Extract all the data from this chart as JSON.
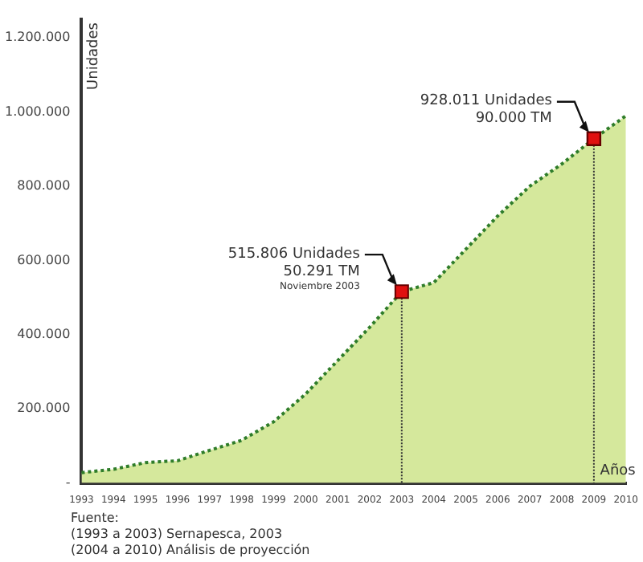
{
  "chart_data": {
    "type": "area",
    "ylabel": "Unidades",
    "xlabel": "Años",
    "categories": [
      "1993",
      "1994",
      "1995",
      "1996",
      "1997",
      "1998",
      "1999",
      "2000",
      "2001",
      "2002",
      "2003",
      "2004",
      "2005",
      "2006",
      "2007",
      "2008",
      "2009",
      "2010"
    ],
    "series": [
      {
        "color": "#2f7d2a",
        "values": [
          28000,
          37000,
          55000,
          60000,
          88000,
          115000,
          165000,
          240000,
          330000,
          420000,
          516000,
          540000,
          630000,
          720000,
          800000,
          860000,
          928000,
          990000
        ]
      }
    ],
    "ref_lines": [
      {
        "axis": "x",
        "value": "2003",
        "color": "#333333",
        "line_style": "dotted"
      },
      {
        "axis": "x",
        "value": "2009",
        "color": "#333333",
        "line_style": "dotted"
      }
    ],
    "ylim": [
      0,
      1250000
    ],
    "yticks": [
      {
        "value": 0,
        "label": "-"
      },
      {
        "value": 200000,
        "label": "200.000"
      },
      {
        "value": 400000,
        "label": "400.000"
      },
      {
        "value": 600000,
        "label": "600.000"
      },
      {
        "value": 800000,
        "label": "800.000"
      },
      {
        "value": 1000000,
        "label": "1.000.000"
      },
      {
        "value": 1200000,
        "label": "1.200.000"
      }
    ],
    "grid": false,
    "legend": false,
    "line_style": "dotted",
    "marker": "none",
    "annotations": [
      {
        "text": "515.806 Unidades\n50.291 TM\nNoviembre 2003",
        "x": "2003",
        "y": 516000
      },
      {
        "text": "928.011 Unidades\n90.000 TM",
        "x": "2009",
        "y": 928000
      },
      "Fuente:",
      "(1993 a 2003) Sernapesca, 2003",
      "(2004 a 2010) Análisis de proyección"
    ]
  }
}
